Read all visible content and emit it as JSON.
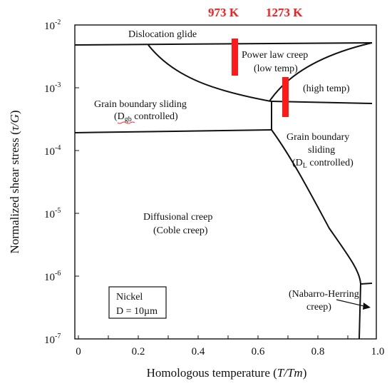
{
  "title": "",
  "axes": {
    "x_title_main": "Homologous temperature (",
    "x_title_var": "T/Tm",
    "x_title_end": ")",
    "x_ticks": [
      "0",
      "0.2",
      "0.4",
      "0.6",
      "0.8",
      "1.0"
    ],
    "y_title_main": "Normalized shear stress (",
    "y_title_var": "τ/G",
    "y_title_end": ")",
    "y_ticks": [
      {
        "base": "10",
        "exp": "-2"
      },
      {
        "base": "10",
        "exp": "-3"
      },
      {
        "base": "10",
        "exp": "-4"
      },
      {
        "base": "10",
        "exp": "-5"
      },
      {
        "base": "10",
        "exp": "-6"
      },
      {
        "base": "10",
        "exp": "-7"
      }
    ],
    "x_range": [
      0,
      1.0
    ],
    "y_range_log10": [
      -7,
      -2
    ]
  },
  "regions": {
    "dislocation_glide": "Dislocation glide",
    "power_law_line1": "Power law creep",
    "power_law_line2": "(low temp)",
    "high_temp": "(high temp)",
    "gbs_left_line1": "Grain boundary sliding",
    "gbs_left_d": "D",
    "gbs_left_sub": "gb",
    "gbs_left_rest": " controlled)",
    "gbs_left_open": "(",
    "gbs_right_line1": "Grain boundary",
    "gbs_right_line2": "sliding",
    "gbs_right_open": "(D",
    "gbs_right_sub": "L",
    "gbs_right_rest": " controlled)",
    "diffusional_line1": "Diffusional creep",
    "diffusional_line2": "(Coble creep)",
    "nabarro_line1": "(Nabarro-Herring",
    "nabarro_line2": "creep)"
  },
  "temperature_markers": [
    {
      "label": "973 K",
      "T_over_Tm": 0.53
    },
    {
      "label": "1273 K",
      "T_over_Tm": 0.7
    }
  ],
  "legend": {
    "line1": "Nickel",
    "line2": "D = 10µm"
  },
  "colors": {
    "marker": "#ff1a1a",
    "boundary": "#111111",
    "underline": "#ff2a2a"
  }
}
